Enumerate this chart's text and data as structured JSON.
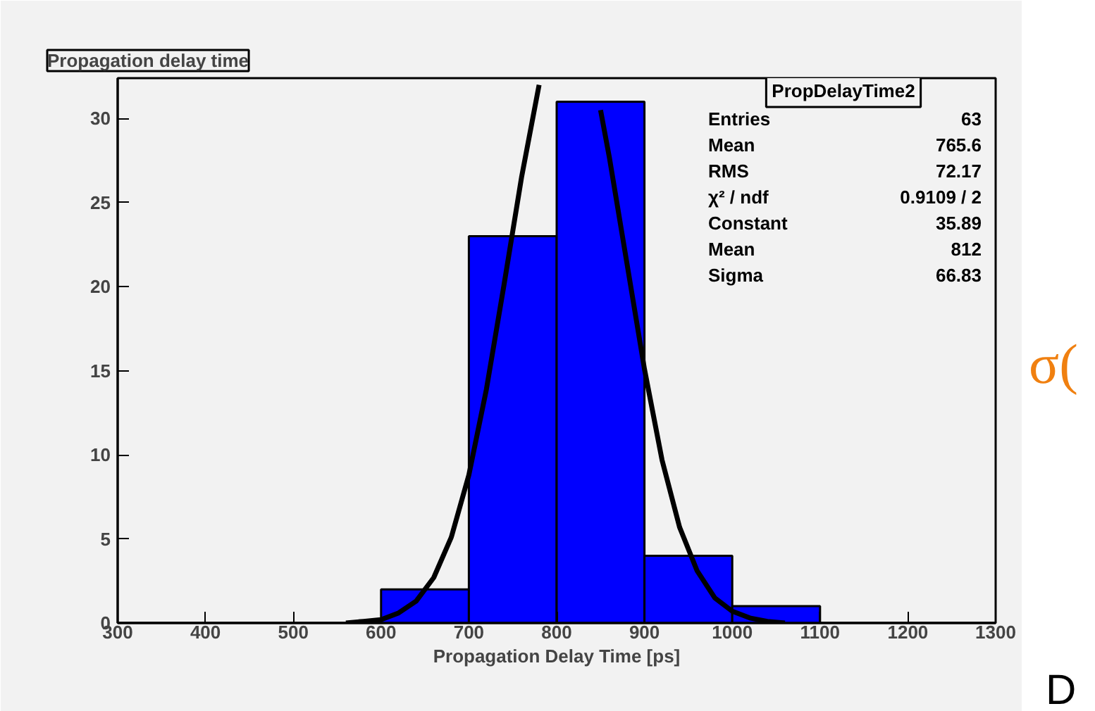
{
  "chart_data": {
    "type": "histogram",
    "title": "Propagation delay time",
    "xlabel": "Propagation Delay Time [ps]",
    "bins": [
      300,
      400,
      500,
      600,
      700,
      800,
      900,
      1000,
      1100,
      1200,
      1300
    ],
    "values": [
      0,
      0,
      0,
      2,
      23,
      31,
      4,
      1,
      0,
      0
    ],
    "color": "#0000ff",
    "series": [
      {
        "type": "line",
        "color": "#000000",
        "x": [
          560,
          580,
          600,
          620,
          640,
          660,
          680,
          700,
          720,
          740,
          760,
          780,
          800,
          820,
          840,
          850,
          860,
          880,
          900,
          920,
          940,
          960,
          980,
          1000,
          1020,
          1040,
          1060
        ],
        "values": [
          0.0,
          0.1,
          0.2,
          0.6,
          1.3,
          2.7,
          5.1,
          8.8,
          13.9,
          20.1,
          26.5,
          32.0,
          null,
          null,
          null,
          30.5,
          27.7,
          21.4,
          15.1,
          9.7,
          5.7,
          3.1,
          1.5,
          0.7,
          0.3,
          0.1,
          0.0
        ]
      }
    ],
    "xlim": [
      300,
      1300
    ],
    "ylim": [
      0,
      32.4
    ],
    "xticks": [
      300,
      400,
      500,
      600,
      700,
      800,
      900,
      1000,
      1100,
      1200,
      1300
    ],
    "yticks": [
      0,
      5,
      10,
      15,
      20,
      25,
      30
    ],
    "grid": false,
    "annotations": [
      "PropDelayTime2",
      "Entries",
      "63",
      "Mean",
      "765.6",
      "RMS",
      "72.17",
      "χ² / ndf",
      "0.9109 / 2",
      "Constant",
      "35.89",
      "Mean",
      "812",
      "Sigma",
      "66.83",
      "σ(",
      "D"
    ]
  }
}
